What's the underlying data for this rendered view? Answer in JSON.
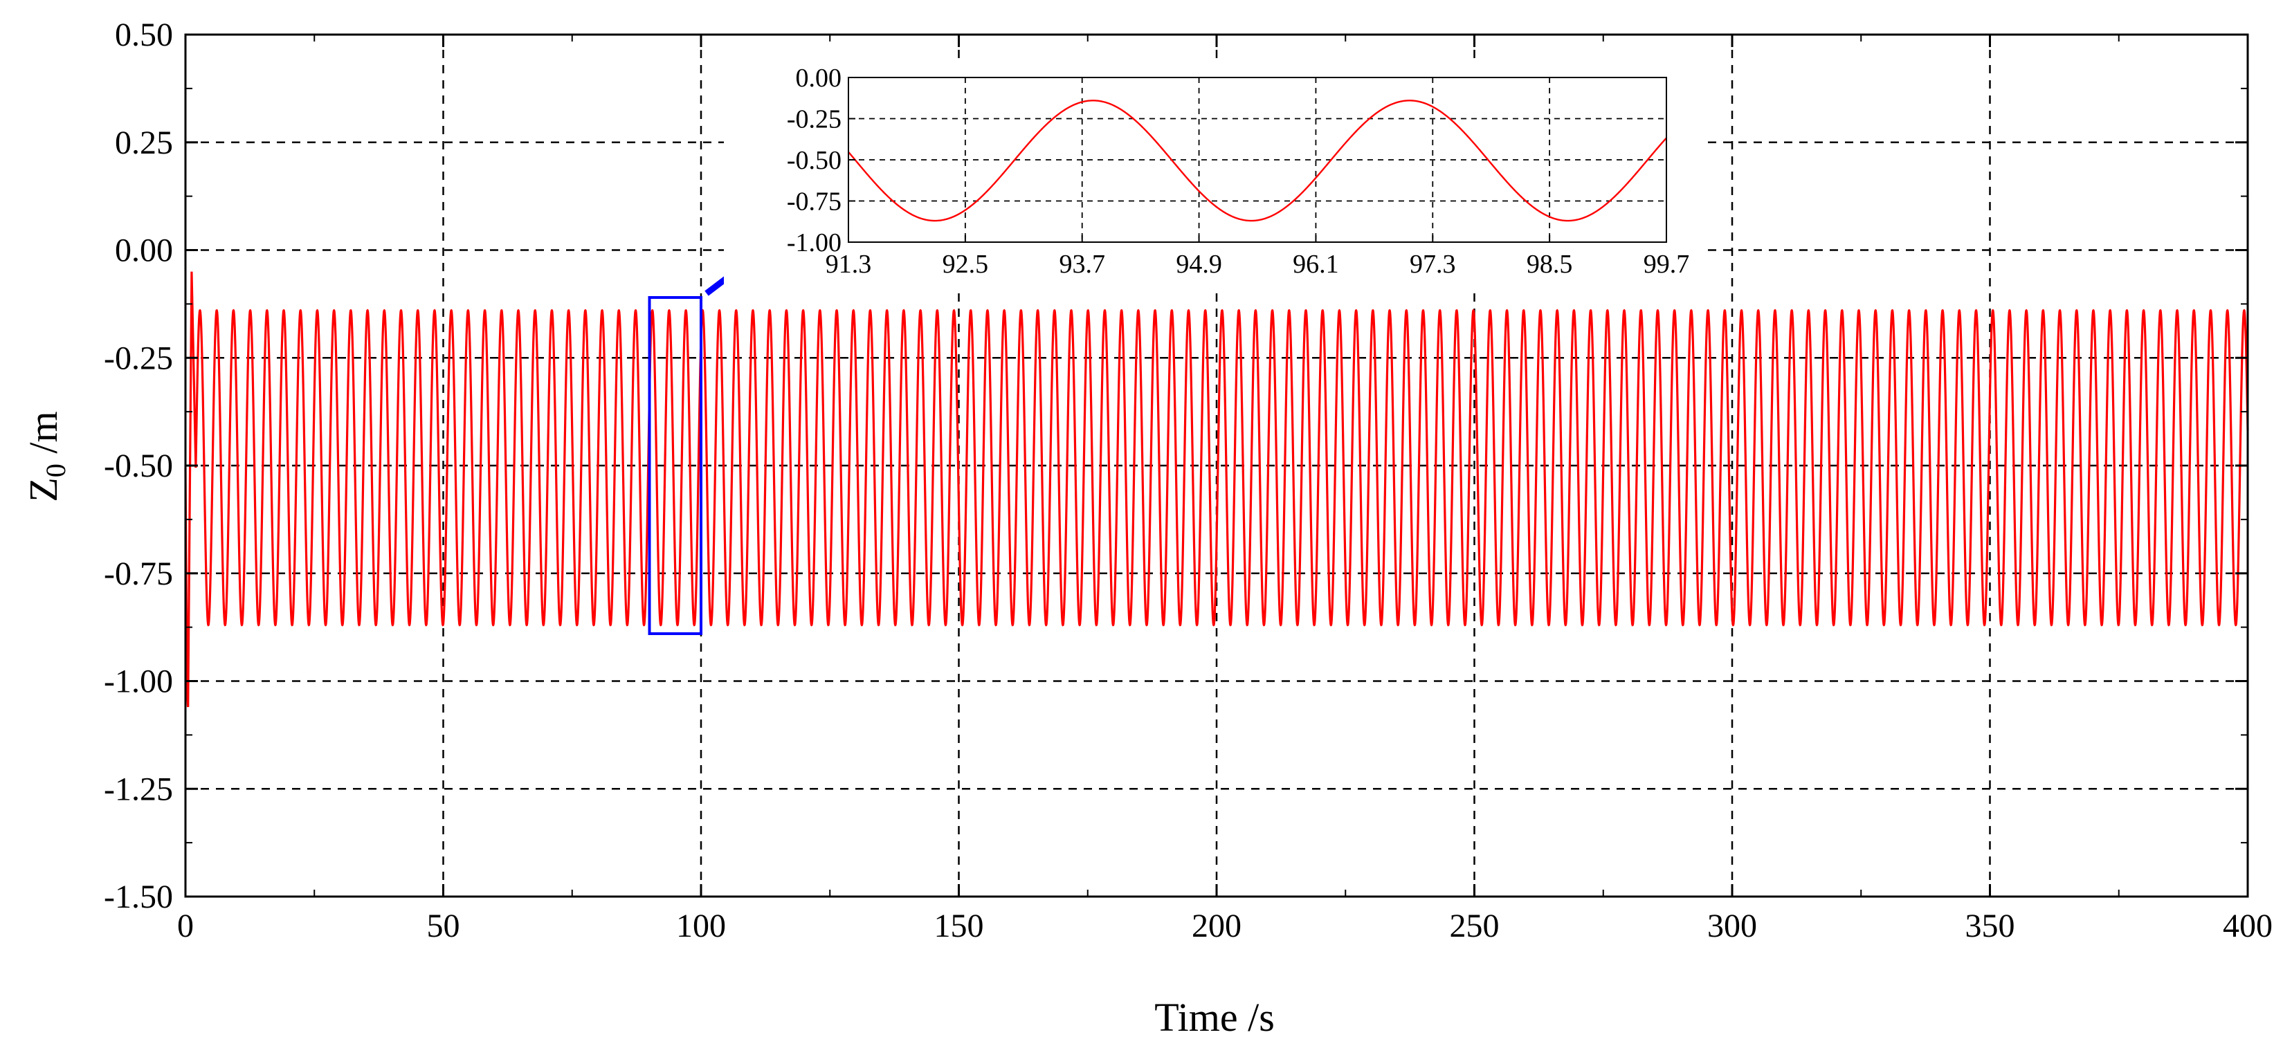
{
  "chart_data": {
    "type": "line",
    "xlabel": "Time /s",
    "ylabel": "Z",
    "ylabel_subscript": "0",
    "ylabel_unit": " /m",
    "xlim": [
      0,
      400
    ],
    "ylim": [
      -1.5,
      0.5
    ],
    "x_ticks": [
      "0",
      "50",
      "100",
      "150",
      "200",
      "250",
      "300",
      "350",
      "400"
    ],
    "y_ticks": [
      "0.50",
      "0.25",
      "0.00",
      "-0.25",
      "-0.50",
      "-0.75",
      "-1.00",
      "-1.25",
      "-1.50"
    ],
    "grid": true,
    "series": [
      {
        "name": "Z0",
        "color": "#ff0000",
        "description_values": {
          "mean": -0.505,
          "amplitude": 0.365,
          "period_s": 3.25,
          "initial_peak": -0.05,
          "initial_trough": -1.06,
          "transient_end_s": 2.0
        }
      }
    ],
    "zoom_box": {
      "x_range": [
        90,
        100
      ],
      "y_range": [
        -0.89,
        -0.11
      ],
      "color": "#0000ff"
    },
    "inset": {
      "xlim": [
        91.3,
        99.7
      ],
      "ylim": [
        -1.0,
        0.0
      ],
      "x_ticks": [
        "91.3",
        "92.5",
        "93.7",
        "94.9",
        "96.1",
        "97.3",
        "98.5",
        "99.7"
      ],
      "y_ticks": [
        "0.00",
        "-0.25",
        "-0.50",
        "-0.75",
        "-1.00"
      ],
      "series_color": "#ff0000"
    }
  }
}
